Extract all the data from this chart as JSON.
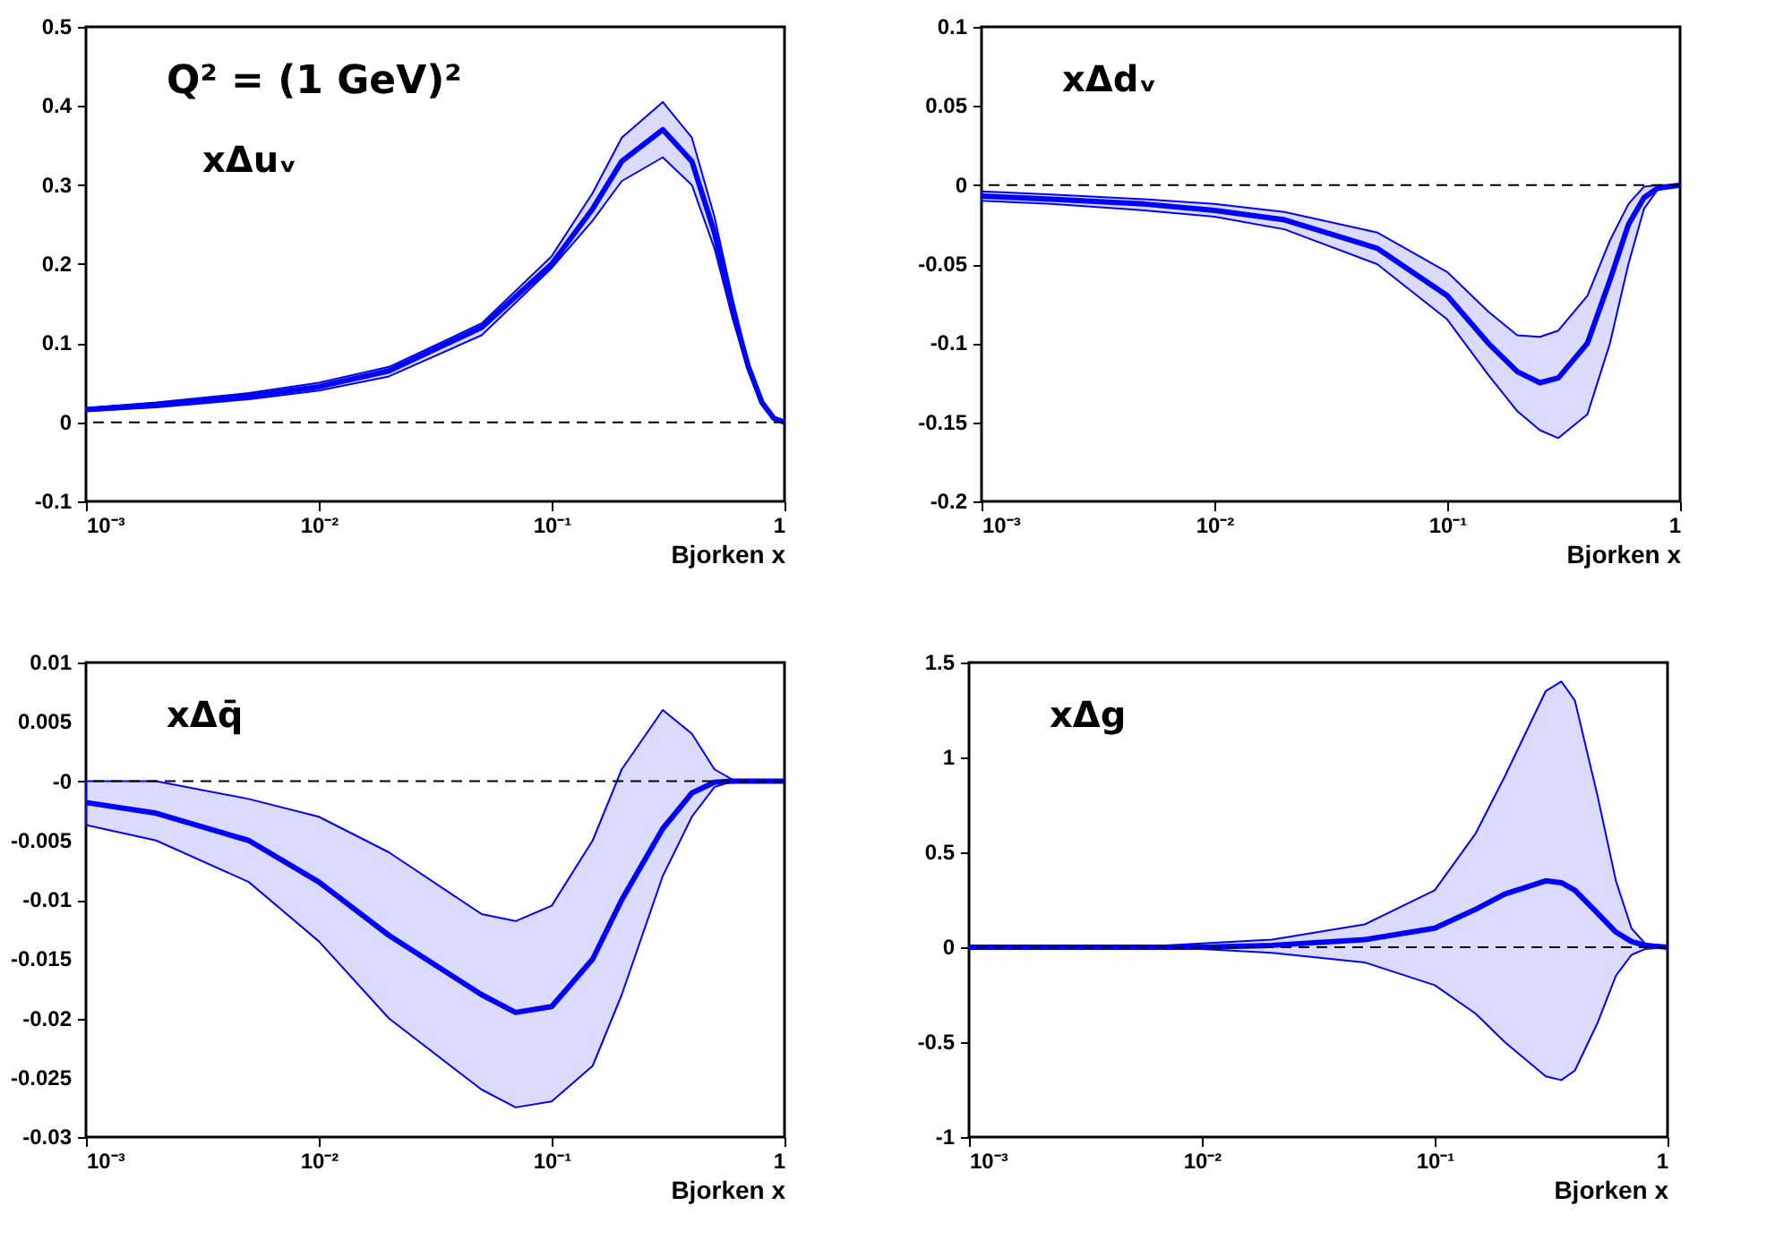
{
  "chart_data": [
    {
      "type": "line",
      "xlabel": "Bjorken x",
      "log": "x",
      "annotations": [
        "Q² = (1 GeV)²",
        "xΔuᵥ"
      ],
      "xlim": [
        0.001,
        1
      ],
      "xticks": [
        {
          "value": 0.001,
          "label": "10⁻³"
        },
        {
          "value": 0.01,
          "label": "10⁻²"
        },
        {
          "value": 0.1,
          "label": "10⁻¹"
        },
        1
      ],
      "ylim": [
        -0.1,
        0.5
      ],
      "yticks": [
        -0.1,
        0,
        0.1,
        0.2,
        0.3,
        0.4,
        0.5
      ],
      "ref_lines": [
        {
          "axis": "y",
          "value": 0,
          "color": "#000000",
          "line_style": "dashed"
        }
      ],
      "series": [
        {
          "color": "#0000ff",
          "x": [
            0.001,
            0.002,
            0.005,
            0.01,
            0.02,
            0.05,
            0.1,
            0.15,
            0.2,
            0.3,
            0.4,
            0.5,
            0.6,
            0.7,
            0.8,
            0.9,
            1
          ],
          "values": [
            0.016,
            0.022,
            0.033,
            0.045,
            0.065,
            0.12,
            0.2,
            0.27,
            0.33,
            0.37,
            0.33,
            0.24,
            0.14,
            0.07,
            0.025,
            0.005,
            0
          ],
          "upper": [
            0.018,
            0.025,
            0.037,
            0.05,
            0.07,
            0.125,
            0.21,
            0.29,
            0.36,
            0.405,
            0.36,
            0.26,
            0.155,
            0.075,
            0.027,
            0.006,
            0
          ],
          "lower": [
            0.014,
            0.019,
            0.029,
            0.04,
            0.058,
            0.11,
            0.195,
            0.255,
            0.305,
            0.335,
            0.3,
            0.22,
            0.13,
            0.065,
            0.023,
            0.004,
            0
          ]
        }
      ]
    },
    {
      "type": "line",
      "xlabel": "Bjorken x",
      "log": "x",
      "annotations": [
        "xΔdᵥ"
      ],
      "xlim": [
        0.001,
        1
      ],
      "xticks": [
        {
          "value": 0.001,
          "label": "10⁻³"
        },
        {
          "value": 0.01,
          "label": "10⁻²"
        },
        {
          "value": 0.1,
          "label": "10⁻¹"
        },
        1
      ],
      "ylim": [
        -0.2,
        0.1
      ],
      "yticks": [
        -0.2,
        -0.15,
        -0.1,
        -0.05,
        0,
        0.05,
        0.1
      ],
      "ref_lines": [
        {
          "axis": "y",
          "value": 0,
          "color": "#000000",
          "line_style": "dashed"
        }
      ],
      "series": [
        {
          "color": "#0000ff",
          "x": [
            0.001,
            0.002,
            0.005,
            0.01,
            0.02,
            0.05,
            0.1,
            0.15,
            0.2,
            0.25,
            0.3,
            0.4,
            0.5,
            0.6,
            0.7,
            0.8,
            1
          ],
          "values": [
            -0.007,
            -0.009,
            -0.012,
            -0.016,
            -0.022,
            -0.04,
            -0.07,
            -0.1,
            -0.118,
            -0.125,
            -0.122,
            -0.1,
            -0.06,
            -0.025,
            -0.008,
            -0.002,
            0
          ],
          "upper": [
            -0.004,
            -0.006,
            -0.009,
            -0.012,
            -0.017,
            -0.03,
            -0.055,
            -0.08,
            -0.095,
            -0.096,
            -0.092,
            -0.07,
            -0.035,
            -0.012,
            -0.001,
            0,
            0
          ],
          "lower": [
            -0.01,
            -0.012,
            -0.016,
            -0.02,
            -0.028,
            -0.05,
            -0.085,
            -0.12,
            -0.143,
            -0.155,
            -0.16,
            -0.145,
            -0.1,
            -0.05,
            -0.015,
            -0.003,
            0
          ]
        }
      ]
    },
    {
      "type": "line",
      "xlabel": "Bjorken x",
      "log": "x",
      "annotations": [
        "xΔq̄"
      ],
      "xlim": [
        0.001,
        1
      ],
      "xticks": [
        {
          "value": 0.001,
          "label": "10⁻³"
        },
        {
          "value": 0.01,
          "label": "10⁻²"
        },
        {
          "value": 0.1,
          "label": "10⁻¹"
        },
        1
      ],
      "ylim": [
        -0.03,
        0.01
      ],
      "yticks": [
        -0.03,
        -0.025,
        -0.02,
        -0.015,
        -0.01,
        -0.005,
        {
          "value": 0,
          "label": "-0"
        },
        0.005,
        0.01
      ],
      "ref_lines": [
        {
          "axis": "y",
          "value": 0,
          "color": "#000000",
          "line_style": "dashed"
        }
      ],
      "series": [
        {
          "color": "#0000ff",
          "x": [
            0.001,
            0.002,
            0.005,
            0.01,
            0.02,
            0.05,
            0.07,
            0.1,
            0.15,
            0.2,
            0.3,
            0.4,
            0.5,
            0.6,
            1
          ],
          "values": [
            -0.0018,
            -0.0027,
            -0.005,
            -0.0085,
            -0.013,
            -0.018,
            -0.0195,
            -0.019,
            -0.015,
            -0.01,
            -0.004,
            -0.001,
            -0.0001,
            0,
            0
          ],
          "upper": [
            0,
            0,
            -0.0015,
            -0.003,
            -0.006,
            -0.0112,
            -0.0118,
            -0.0105,
            -0.005,
            0.001,
            0.006,
            0.004,
            0.001,
            0.0001,
            0
          ],
          "lower": [
            -0.0037,
            -0.005,
            -0.0085,
            -0.0135,
            -0.02,
            -0.026,
            -0.0275,
            -0.027,
            -0.024,
            -0.018,
            -0.008,
            -0.003,
            -0.0005,
            0,
            0
          ]
        }
      ]
    },
    {
      "type": "line",
      "xlabel": "Bjorken x",
      "log": "x",
      "annotations": [
        "xΔg"
      ],
      "xlim": [
        0.001,
        1
      ],
      "xticks": [
        {
          "value": 0.001,
          "label": "10⁻³"
        },
        {
          "value": 0.01,
          "label": "10⁻²"
        },
        {
          "value": 0.1,
          "label": "10⁻¹"
        },
        1
      ],
      "ylim": [
        -1,
        1.5
      ],
      "yticks": [
        -1,
        -0.5,
        0,
        0.5,
        1,
        1.5
      ],
      "ref_lines": [
        {
          "axis": "y",
          "value": 0,
          "color": "#000000",
          "line_style": "dashed"
        }
      ],
      "series": [
        {
          "color": "#0000ff",
          "x": [
            0.001,
            0.005,
            0.01,
            0.02,
            0.05,
            0.1,
            0.15,
            0.2,
            0.3,
            0.35,
            0.4,
            0.5,
            0.6,
            0.7,
            0.8,
            1
          ],
          "values": [
            0,
            0,
            0,
            0.01,
            0.04,
            0.1,
            0.2,
            0.28,
            0.35,
            0.34,
            0.3,
            0.18,
            0.08,
            0.03,
            0.01,
            0
          ],
          "upper": [
            0,
            0,
            0.02,
            0.04,
            0.12,
            0.3,
            0.6,
            0.9,
            1.35,
            1.4,
            1.3,
            0.8,
            0.35,
            0.1,
            0.02,
            0
          ],
          "lower": [
            0,
            0,
            -0.01,
            -0.03,
            -0.08,
            -0.2,
            -0.35,
            -0.5,
            -0.68,
            -0.7,
            -0.65,
            -0.4,
            -0.15,
            -0.04,
            -0.01,
            0
          ]
        }
      ]
    }
  ]
}
